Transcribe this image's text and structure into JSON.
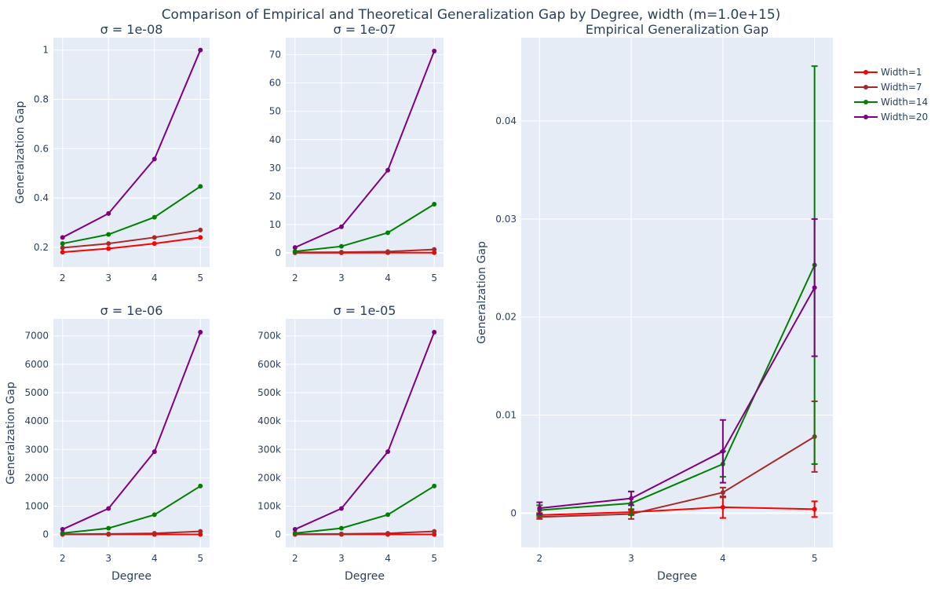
{
  "title": "Comparison of Empirical and Theoretical Generalization Gap by Degree, width (m=1.0e+15)",
  "legend": {
    "placement": "top-right, outside plot area",
    "entries": [
      {
        "label": "Width=1",
        "color": "#ff0000"
      },
      {
        "label": "Width=7",
        "color": "#a52a2a"
      },
      {
        "label": "Width=14",
        "color": "#008000"
      },
      {
        "label": "Width=20",
        "color": "#800080"
      }
    ]
  },
  "colors": {
    "plot_bg": "#e5ecf6",
    "grid": "#ffffff",
    "text": "#2a3f5f"
  },
  "chart_data": [
    {
      "type": "line",
      "title": "σ = 1e-08",
      "xlabel": "",
      "ylabel": "Generalzation Gap",
      "x": [
        2,
        3,
        4,
        5
      ],
      "xlim": [
        1.8,
        5.2
      ],
      "ylim": [
        0.12,
        1.05
      ],
      "yticks": [
        0.2,
        0.4,
        0.6,
        0.8,
        1
      ],
      "ytick_labels": [
        "0.2",
        "0.4",
        "0.6",
        "0.8",
        "1"
      ],
      "grid": true,
      "series": [
        {
          "name": "Width=1",
          "values": [
            0.18,
            0.195,
            0.215,
            0.24
          ]
        },
        {
          "name": "Width=7",
          "values": [
            0.198,
            0.215,
            0.24,
            0.27
          ]
        },
        {
          "name": "Width=14",
          "values": [
            0.215,
            0.252,
            0.322,
            0.447
          ]
        },
        {
          "name": "Width=20",
          "values": [
            0.24,
            0.337,
            0.558,
            1.0
          ]
        }
      ]
    },
    {
      "type": "line",
      "title": "σ = 1e-07",
      "xlabel": "",
      "ylabel": "",
      "x": [
        2,
        3,
        4,
        5
      ],
      "xlim": [
        1.8,
        5.2
      ],
      "ylim": [
        -5,
        76
      ],
      "yticks": [
        0,
        10,
        20,
        30,
        40,
        50,
        60,
        70
      ],
      "ytick_labels": [
        "0",
        "10",
        "20",
        "30",
        "40",
        "50",
        "60",
        "70"
      ],
      "grid": true,
      "series": [
        {
          "name": "Width=1",
          "values": [
            0.02,
            0.03,
            0.05,
            0.05
          ]
        },
        {
          "name": "Width=7",
          "values": [
            0.15,
            0.25,
            0.45,
            1.2
          ]
        },
        {
          "name": "Width=14",
          "values": [
            0.5,
            2.3,
            7.1,
            17.2
          ]
        },
        {
          "name": "Width=20",
          "values": [
            1.9,
            9.2,
            29.2,
            71.3
          ]
        }
      ]
    },
    {
      "type": "line",
      "title": "σ = 1e-06",
      "xlabel": "Degree",
      "ylabel": "Generalzation Gap",
      "x": [
        2,
        3,
        4,
        5
      ],
      "xlim": [
        1.8,
        5.2
      ],
      "ylim": [
        -450,
        7600
      ],
      "yticks": [
        0,
        1000,
        2000,
        3000,
        4000,
        5000,
        6000,
        7000
      ],
      "ytick_labels": [
        "0",
        "1000",
        "2000",
        "3000",
        "4000",
        "5000",
        "6000",
        "7000"
      ],
      "grid": true,
      "series": [
        {
          "name": "Width=1",
          "values": [
            5,
            5,
            5,
            5
          ]
        },
        {
          "name": "Width=7",
          "values": [
            15,
            25,
            45,
            115
          ]
        },
        {
          "name": "Width=14",
          "values": [
            50,
            225,
            700,
            1710
          ]
        },
        {
          "name": "Width=20",
          "values": [
            185,
            920,
            2920,
            7130
          ]
        }
      ]
    },
    {
      "type": "line",
      "title": "σ = 1e-05",
      "xlabel": "Degree",
      "ylabel": "",
      "x": [
        2,
        3,
        4,
        5
      ],
      "xlim": [
        1.8,
        5.2
      ],
      "ylim": [
        -45000,
        760000
      ],
      "yticks": [
        0,
        100000,
        200000,
        300000,
        400000,
        500000,
        600000,
        700000
      ],
      "ytick_labels": [
        "0",
        "100k",
        "200k",
        "300k",
        "400k",
        "500k",
        "600k",
        "700k"
      ],
      "grid": true,
      "series": [
        {
          "name": "Width=1",
          "values": [
            500,
            500,
            500,
            500
          ]
        },
        {
          "name": "Width=7",
          "values": [
            1500,
            2500,
            4500,
            11500
          ]
        },
        {
          "name": "Width=14",
          "values": [
            5000,
            22500,
            70000,
            171000
          ]
        },
        {
          "name": "Width=20",
          "values": [
            18500,
            92000,
            292000,
            713000
          ]
        }
      ]
    },
    {
      "type": "line",
      "title": "Empirical Generalization Gap",
      "xlabel": "Degree",
      "ylabel": "Generalzation Gap",
      "x": [
        2,
        3,
        4,
        5
      ],
      "xlim": [
        1.8,
        5.2
      ],
      "ylim": [
        -0.0035,
        0.0485
      ],
      "yticks": [
        0,
        0.01,
        0.02,
        0.03,
        0.04
      ],
      "ytick_labels": [
        "0",
        "0.01",
        "0.02",
        "0.03",
        "0.04"
      ],
      "grid": true,
      "error_bars": true,
      "series": [
        {
          "name": "Width=1",
          "values": [
            -0.0002,
            0.0001,
            0.0006,
            0.0004
          ],
          "errors": [
            0.0002,
            0.0002,
            0.0011,
            0.0008
          ]
        },
        {
          "name": "Width=7",
          "values": [
            -0.0004,
            -0.0001,
            0.0021,
            0.0078
          ],
          "errors": [
            0.0002,
            0.0005,
            0.0005,
            0.0036
          ]
        },
        {
          "name": "Width=14",
          "values": [
            0.0003,
            0.001,
            0.005,
            0.0253
          ],
          "errors": [
            0.0005,
            0.0012,
            0.0013,
            0.0203
          ]
        },
        {
          "name": "Width=20",
          "values": [
            0.0005,
            0.0015,
            0.0063,
            0.023
          ],
          "errors": [
            0.0006,
            0.0007,
            0.0032,
            0.007
          ]
        }
      ]
    }
  ]
}
